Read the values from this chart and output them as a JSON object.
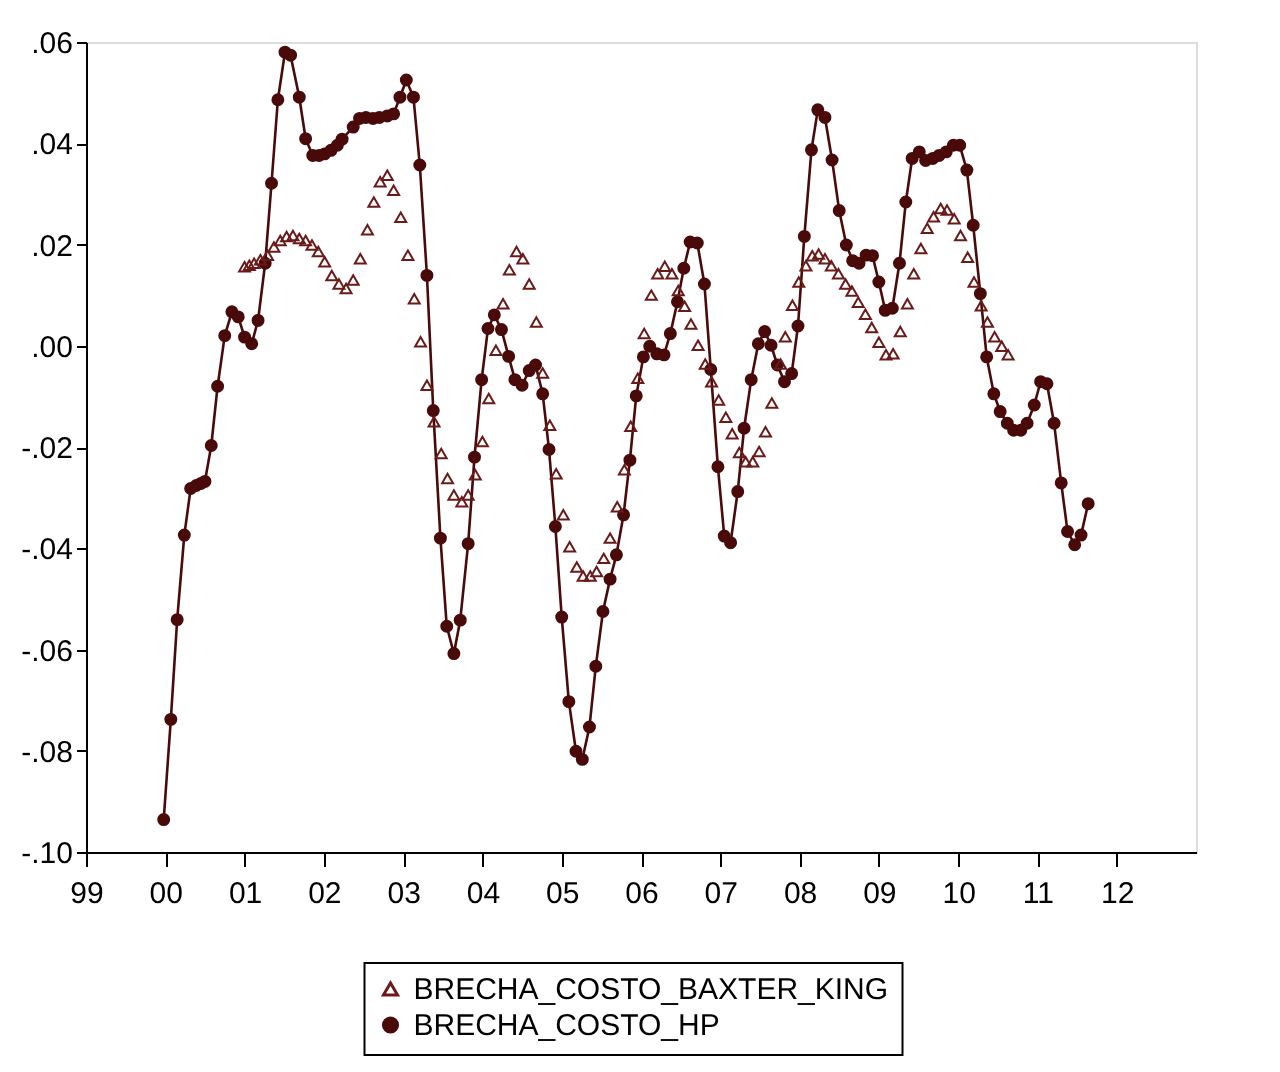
{
  "chart_data": {
    "type": "line",
    "xlim": [
      1999,
      2013
    ],
    "ylim": [
      -0.1,
      0.06
    ],
    "xticks": [
      {
        "value": 1999,
        "label": "99"
      },
      {
        "value": 2000,
        "label": "00"
      },
      {
        "value": 2001,
        "label": "01"
      },
      {
        "value": 2002,
        "label": "02"
      },
      {
        "value": 2003,
        "label": "03"
      },
      {
        "value": 2004,
        "label": "04"
      },
      {
        "value": 2005,
        "label": "05"
      },
      {
        "value": 2006,
        "label": "06"
      },
      {
        "value": 2007,
        "label": "07"
      },
      {
        "value": 2008,
        "label": "08"
      },
      {
        "value": 2009,
        "label": "09"
      },
      {
        "value": 2010,
        "label": "10"
      },
      {
        "value": 2011,
        "label": "11"
      },
      {
        "value": 2012,
        "label": "12"
      }
    ],
    "yticks": [
      {
        "value": 0.06,
        "label": ".06"
      },
      {
        "value": 0.04,
        "label": ".04"
      },
      {
        "value": 0.02,
        "label": ".02"
      },
      {
        "value": 0,
        "label": ".00"
      },
      {
        "value": -0.02,
        "label": "-.02"
      },
      {
        "value": -0.04,
        "label": "-.04"
      },
      {
        "value": -0.06,
        "label": "-.06"
      },
      {
        "value": -0.08,
        "label": "-.08"
      },
      {
        "value": -0.1,
        "label": "-.10"
      }
    ],
    "grid": false,
    "legend": "bottom",
    "series": [
      {
        "name": "BRECHA_COSTO_BAXTER_KING",
        "type": "scatter",
        "marker": "triangle",
        "color": "#6b1a1a",
        "x": [
          2001.0,
          2001.06,
          2001.12,
          2001.2,
          2001.29,
          2001.37,
          2001.45,
          2001.53,
          2001.61,
          2001.69,
          2001.77,
          2001.85,
          2001.93,
          2002.01,
          2002.1,
          2002.19,
          2002.28,
          2002.37,
          2002.46,
          2002.55,
          2002.63,
          2002.71,
          2002.8,
          2002.88,
          2002.97,
          2003.06,
          2003.14,
          2003.22,
          2003.3,
          2003.39,
          2003.48,
          2003.56,
          2003.64,
          2003.74,
          2003.82,
          2003.91,
          2004.0,
          2004.08,
          2004.17,
          2004.26,
          2004.34,
          2004.43,
          2004.51,
          2004.59,
          2004.68,
          2004.76,
          2004.85,
          2004.93,
          2005.02,
          2005.1,
          2005.19,
          2005.27,
          2005.36,
          2005.44,
          2005.53,
          2005.61,
          2005.7,
          2005.79,
          2005.87,
          2005.96,
          2006.04,
          2006.13,
          2006.21,
          2006.3,
          2006.39,
          2006.47,
          2006.55,
          2006.63,
          2006.72,
          2006.81,
          2006.89,
          2006.98,
          2007.07,
          2007.15,
          2007.24,
          2007.32,
          2007.41,
          2007.49,
          2007.57,
          2007.65,
          2007.76,
          2007.82,
          2007.91,
          2007.99,
          2008.08,
          2008.16,
          2008.24,
          2008.32,
          2008.4,
          2008.49,
          2008.58,
          2008.66,
          2008.74,
          2008.83,
          2008.91,
          2009.0,
          2009.09,
          2009.18,
          2009.27,
          2009.36,
          2009.44,
          2009.53,
          2009.61,
          2009.69,
          2009.78,
          2009.86,
          2009.95,
          2010.03,
          2010.12,
          2010.2,
          2010.29,
          2010.37,
          2010.46,
          2010.55,
          2010.63
        ],
        "values": [
          0.0156,
          0.0159,
          0.0163,
          0.017,
          0.0179,
          0.0195,
          0.0208,
          0.0216,
          0.0218,
          0.0212,
          0.0208,
          0.0199,
          0.0186,
          0.0166,
          0.0139,
          0.0122,
          0.0113,
          0.013,
          0.0172,
          0.0229,
          0.0284,
          0.0324,
          0.0337,
          0.0307,
          0.0254,
          0.0179,
          0.0093,
          0.0008,
          -0.0078,
          -0.015,
          -0.0213,
          -0.0262,
          -0.0295,
          -0.0308,
          -0.0295,
          -0.0255,
          -0.0189,
          -0.0104,
          -0.0009,
          0.0083,
          0.015,
          0.0186,
          0.0172,
          0.0122,
          0.0047,
          -0.0054,
          -0.0157,
          -0.0253,
          -0.0334,
          -0.0397,
          -0.0437,
          -0.0455,
          -0.0455,
          -0.0446,
          -0.042,
          -0.038,
          -0.0318,
          -0.0245,
          -0.0159,
          -0.0064,
          0.0024,
          0.01,
          0.0142,
          0.0157,
          0.0142,
          0.0109,
          0.0078,
          0.0043,
          0.0001,
          -0.0036,
          -0.0071,
          -0.0107,
          -0.0141,
          -0.0174,
          -0.0211,
          -0.0229,
          -0.0229,
          -0.0209,
          -0.017,
          -0.0113,
          -0.0036,
          0.0018,
          0.008,
          0.0126,
          0.0158,
          0.0178,
          0.0181,
          0.0172,
          0.0158,
          0.0142,
          0.0122,
          0.0108,
          0.0086,
          0.0062,
          0.0036,
          0.0007,
          -0.0018,
          -0.0016,
          0.0028,
          0.0083,
          0.0142,
          0.0192,
          0.0232,
          0.0255,
          0.0271,
          0.0268,
          0.0251,
          0.0218,
          0.0175,
          0.0126,
          0.0079,
          0.0047,
          0.0018,
          -0.0001,
          -0.0018
        ]
      },
      {
        "name": "BRECHA_COSTO_HP",
        "marker": "circle",
        "line_style": "solid",
        "color": "#4a0a0a",
        "x": [
          1999.98,
          2000.07,
          2000.15,
          2000.24,
          2000.32,
          2000.39,
          2000.45,
          2000.5,
          2000.58,
          2000.66,
          2000.75,
          2000.84,
          2000.92,
          2001.0,
          2001.09,
          2001.17,
          2001.26,
          2001.34,
          2001.42,
          2001.51,
          2001.58,
          2001.69,
          2001.77,
          2001.86,
          2001.94,
          2002.01,
          2002.09,
          2002.17,
          2002.23,
          2002.37,
          2002.45,
          2002.53,
          2002.62,
          2002.7,
          2002.8,
          2002.88,
          2002.96,
          2003.04,
          2003.13,
          2003.21,
          2003.3,
          2003.38,
          2003.47,
          2003.55,
          2003.64,
          2003.72,
          2003.82,
          2003.9,
          2003.99,
          2004.07,
          2004.15,
          2004.24,
          2004.33,
          2004.41,
          2004.5,
          2004.59,
          2004.67,
          2004.76,
          2004.84,
          2004.92,
          2005.0,
          2005.09,
          2005.18,
          2005.26,
          2005.35,
          2005.43,
          2005.52,
          2005.61,
          2005.69,
          2005.78,
          2005.86,
          2005.94,
          2006.03,
          2006.11,
          2006.2,
          2006.29,
          2006.37,
          2006.46,
          2006.54,
          2006.62,
          2006.71,
          2006.8,
          2006.88,
          2006.97,
          2007.05,
          2007.13,
          2007.22,
          2007.3,
          2007.39,
          2007.48,
          2007.56,
          2007.64,
          2007.72,
          2007.81,
          2007.9,
          2007.98,
          2008.06,
          2008.15,
          2008.23,
          2008.32,
          2008.41,
          2008.5,
          2008.59,
          2008.67,
          2008.75,
          2008.84,
          2008.92,
          2009.0,
          2009.08,
          2009.17,
          2009.26,
          2009.34,
          2009.42,
          2009.51,
          2009.59,
          2009.68,
          2009.76,
          2009.85,
          2009.94,
          2010.02,
          2010.11,
          2010.19,
          2010.28,
          2010.36,
          2010.45,
          2010.53,
          2010.62,
          2010.7,
          2010.79,
          2010.87,
          2010.96,
          2011.04,
          2011.12,
          2011.21,
          2011.3,
          2011.38,
          2011.47,
          2011.55,
          2011.64
        ],
        "values": [
          -0.0936,
          -0.0738,
          -0.0541,
          -0.0374,
          -0.0282,
          -0.0276,
          -0.0272,
          -0.0268,
          -0.0197,
          -0.008,
          0.002,
          0.0067,
          0.0057,
          0.0017,
          0.0004,
          0.005,
          0.0163,
          0.0321,
          0.0486,
          0.058,
          0.0574,
          0.0491,
          0.0409,
          0.0376,
          0.0376,
          0.0379,
          0.0386,
          0.0396,
          0.0408,
          0.0432,
          0.0449,
          0.0451,
          0.0449,
          0.0451,
          0.0454,
          0.0458,
          0.0491,
          0.0525,
          0.0491,
          0.0357,
          0.0139,
          -0.0128,
          -0.038,
          -0.0554,
          -0.0608,
          -0.0542,
          -0.0391,
          -0.022,
          -0.0067,
          0.0034,
          0.0061,
          0.0032,
          -0.0021,
          -0.0067,
          -0.0078,
          -0.0049,
          -0.0038,
          -0.0095,
          -0.0205,
          -0.0357,
          -0.0536,
          -0.0703,
          -0.0801,
          -0.0817,
          -0.0753,
          -0.0633,
          -0.0525,
          -0.0461,
          -0.0413,
          -0.0334,
          -0.0226,
          -0.0099,
          -0.0022,
          -0.0001,
          -0.0016,
          -0.0018,
          0.0024,
          0.0087,
          0.0153,
          0.0205,
          0.0203,
          0.0122,
          -0.0047,
          -0.0239,
          -0.0376,
          -0.0389,
          -0.0288,
          -0.0163,
          -0.0067,
          0.0004,
          0.0028,
          0.0001,
          -0.0038,
          -0.0071,
          -0.0055,
          0.0039,
          0.0216,
          0.0387,
          0.0466,
          0.0451,
          0.0367,
          0.0267,
          0.0199,
          0.0168,
          0.0163,
          0.0179,
          0.0178,
          0.0126,
          0.007,
          0.0074,
          0.0163,
          0.0284,
          0.037,
          0.0383,
          0.0366,
          0.037,
          0.0376,
          0.0383,
          0.0396,
          0.0396,
          0.0347,
          0.0238,
          0.0103,
          -0.0022,
          -0.0095,
          -0.013,
          -0.0153,
          -0.0167,
          -0.0167,
          -0.0153,
          -0.0117,
          -0.0071,
          -0.0075,
          -0.0153,
          -0.0271,
          -0.0367,
          -0.0393,
          -0.0374,
          -0.0312
        ]
      }
    ]
  }
}
